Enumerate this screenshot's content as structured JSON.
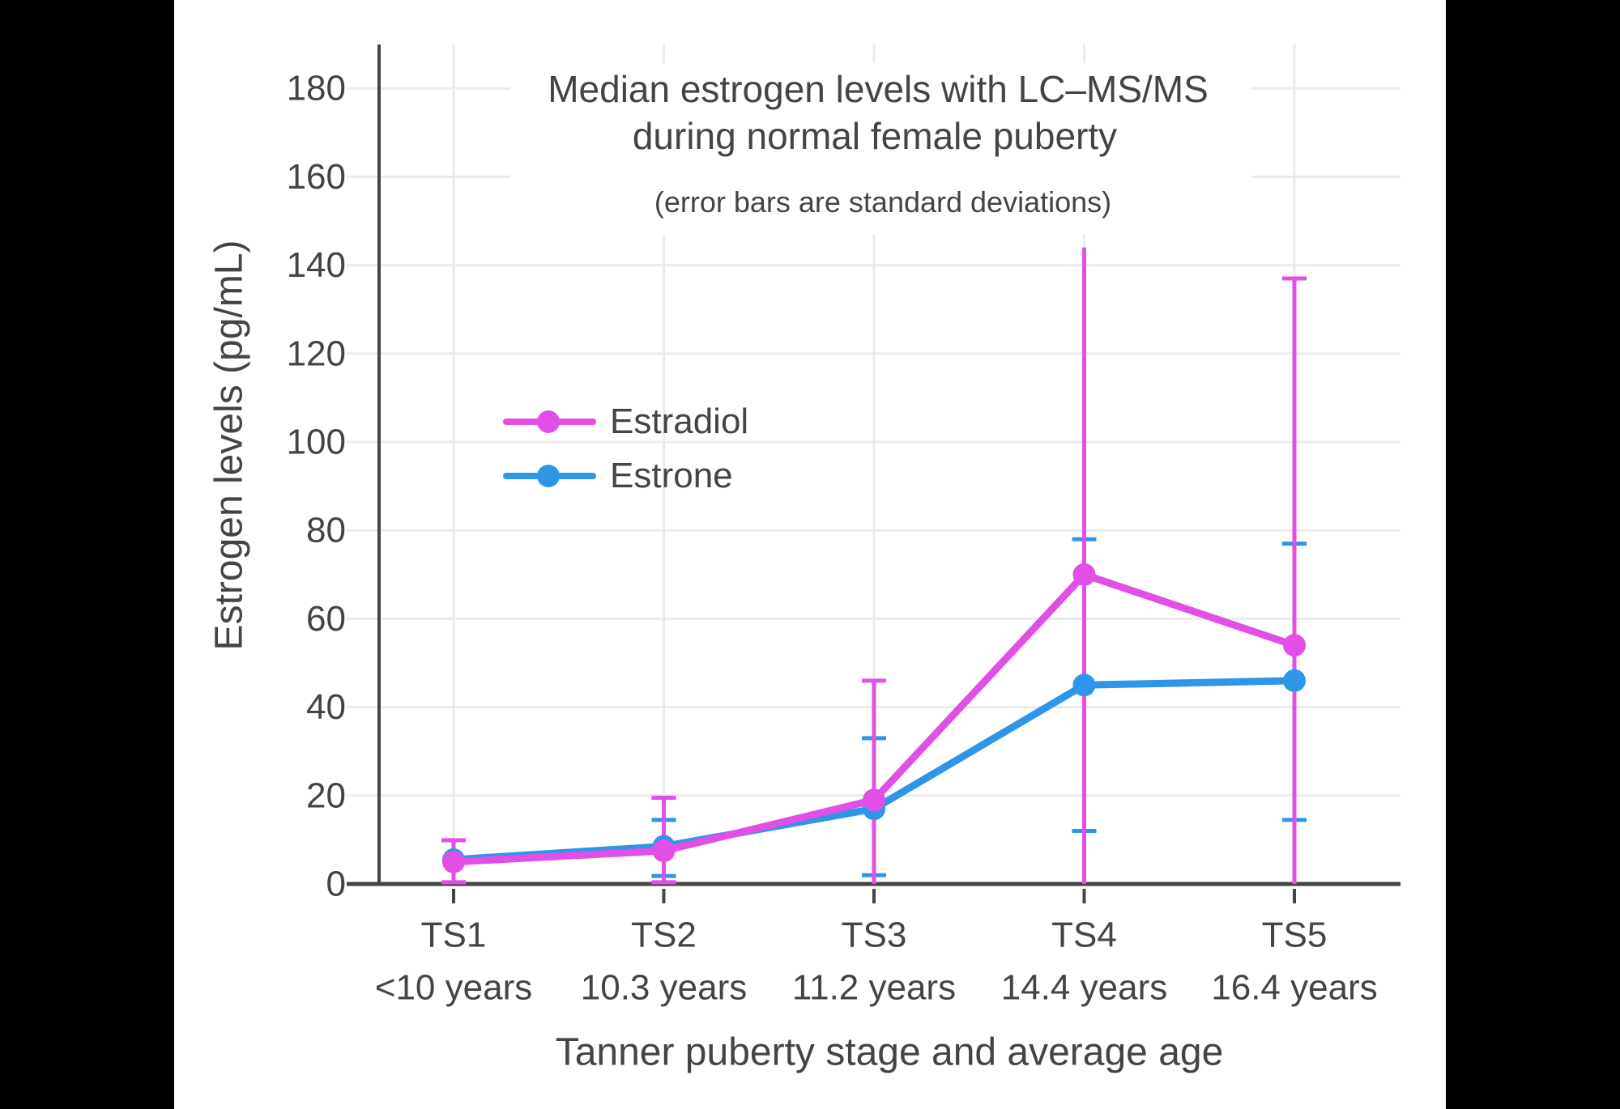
{
  "window": {
    "background": "#000000",
    "panel_background": "#ffffff"
  },
  "chart_data": {
    "type": "line",
    "title_line1": "Median estrogen levels with LC–MS/MS",
    "title_line2": "during normal female puberty",
    "subtitle": "(error bars are standard deviations)",
    "xlabel": "Tanner puberty stage and average age",
    "ylabel": "Estrogen levels (pg/mL)",
    "categories": [
      "TS1",
      "TS2",
      "TS3",
      "TS4",
      "TS5"
    ],
    "category_ages": [
      "<10 years",
      "10.3 years",
      "11.2 years",
      "14.4 years",
      "16.4 years"
    ],
    "y_ticks": [
      0,
      20,
      40,
      60,
      80,
      100,
      120,
      140,
      160,
      180
    ],
    "ylim": [
      0,
      190
    ],
    "grid": true,
    "legend_position": "inside-upper-left",
    "legend": [
      "Estradiol",
      "Estrone"
    ],
    "series": [
      {
        "name": "Estrone",
        "color": "#2E96E8",
        "values": [
          5.5,
          8.5,
          17,
          45,
          46
        ],
        "error_upper": [
          null,
          14.5,
          33,
          78,
          77
        ],
        "error_upper_cap": [
          false,
          true,
          true,
          true,
          true
        ],
        "error_lower": [
          null,
          1.8,
          2,
          12,
          14.5
        ],
        "error_lower_cap": [
          false,
          true,
          true,
          true,
          true
        ]
      },
      {
        "name": "Estradiol",
        "color": "#E14FE6",
        "values": [
          5,
          7.5,
          19,
          70,
          54
        ],
        "error_upper": [
          9.9,
          19.5,
          46,
          144,
          137
        ],
        "error_upper_cap": [
          true,
          true,
          true,
          false,
          true
        ],
        "error_lower": [
          0.4,
          0.4,
          0,
          0,
          0
        ],
        "error_lower_cap": [
          true,
          true,
          false,
          false,
          false
        ]
      }
    ],
    "colors": {
      "axis": "#444444",
      "grid": "#ebebeb",
      "text": "#444444"
    }
  }
}
